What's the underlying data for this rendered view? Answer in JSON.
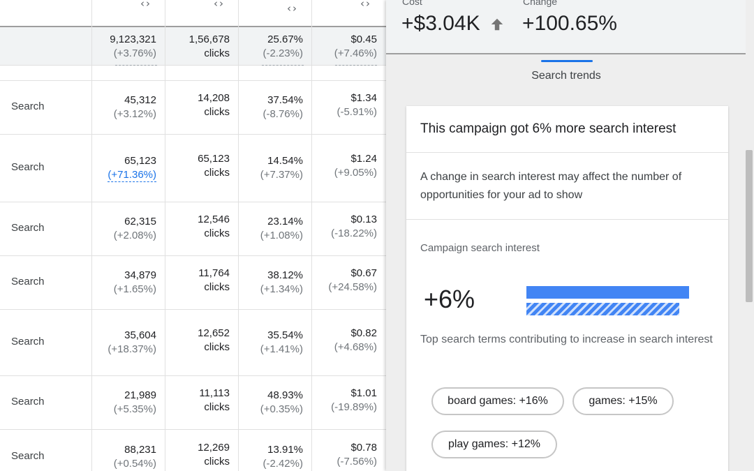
{
  "table": {
    "sort_glyph": "‹›",
    "total": {
      "impressions": "9,123,321",
      "impressions_change": "(+3.76%)",
      "clicks": "1,56,678",
      "clicks_unit": "clicks",
      "ctr": "25.67%",
      "ctr_change": "(-2.23%)",
      "cpc": "$0.45",
      "cpc_change": "(+7.46%)"
    },
    "rows": [
      {
        "type": "Search",
        "impressions": "45,312",
        "impressions_change": "(+3.12%)",
        "clicks": "14,208",
        "clicks_unit": "clicks",
        "ctr": "37.54%",
        "ctr_change": "(-8.76%)",
        "cpc": "$1.34",
        "cpc_change": "(-5.91%)"
      },
      {
        "type": "Search",
        "impressions": "65,123",
        "impressions_change": "(+71.36%)",
        "clicks": "65,123",
        "clicks_unit": "clicks",
        "ctr": "14.54%",
        "ctr_change": "(+7.37%)",
        "cpc": "$1.24",
        "cpc_change": "(+9.05%)"
      },
      {
        "type": "Search",
        "impressions": "62,315",
        "impressions_change": "(+2.08%)",
        "clicks": "12,546",
        "clicks_unit": "clicks",
        "ctr": "23.14%",
        "ctr_change": "(+1.08%)",
        "cpc": "$0.13",
        "cpc_change": "(-18.22%)"
      },
      {
        "type": "Search",
        "impressions": "34,879",
        "impressions_change": "(+1.65%)",
        "clicks": "11,764",
        "clicks_unit": "clicks",
        "ctr": "38.12%",
        "ctr_change": "(+1.34%)",
        "cpc": "$0.67",
        "cpc_change": "(+24.58%)"
      },
      {
        "type": "Search",
        "impressions": "35,604",
        "impressions_change": "(+18.37%)",
        "clicks": "12,652",
        "clicks_unit": "clicks",
        "ctr": "35.54%",
        "ctr_change": "(+1.41%)",
        "cpc": "$0.82",
        "cpc_change": "(+4.68%)"
      },
      {
        "type": "Search",
        "impressions": "21,989",
        "impressions_change": "(+5.35%)",
        "clicks": "11,113",
        "clicks_unit": "clicks",
        "ctr": "48.93%",
        "ctr_change": "(+0.35%)",
        "cpc": "$1.01",
        "cpc_change": "(-19.89%)"
      },
      {
        "type": "Search",
        "impressions": "88,231",
        "impressions_change": "(+0.54%)",
        "clicks": "12,269",
        "clicks_unit": "clicks",
        "ctr": "13.91%",
        "ctr_change": "(-2.42%)",
        "cpc": "$0.78",
        "cpc_change": "(-7.56%)"
      }
    ]
  },
  "panel": {
    "cost_label": "Cost",
    "cost_value": "+$3.04K",
    "change_label": "Change",
    "change_value": "+100.65%",
    "tab_label": "Search trends",
    "card": {
      "title": "This campaign got 6% more search interest",
      "description": "A change in search interest may affect the number of opportunities for your ad to show",
      "interest_label": "Campaign search interest",
      "interest_value": "+6%",
      "interest_fraction_solid": 1.0,
      "interest_fraction_hatched": 0.94,
      "top_terms_label": "Top search terms contributing to increase in search interest",
      "chips": [
        {
          "label": "board games: +16%"
        },
        {
          "label": "games: +15%"
        },
        {
          "label": "play games: +12%"
        }
      ]
    },
    "colors": {
      "accent": "#1a73e8",
      "bar": "#4285f4"
    },
    "icons": {
      "cost_trend": "arrow-up-icon",
      "sort": "sort-arrows-icon"
    }
  }
}
